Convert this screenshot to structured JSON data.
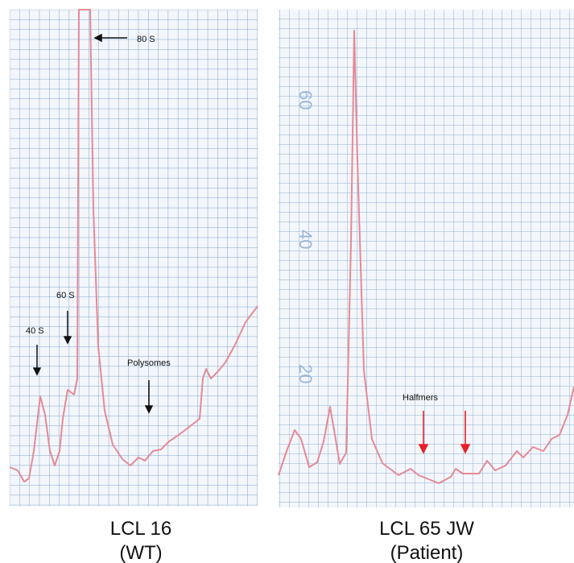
{
  "panels": [
    {
      "caption": "LCL 16",
      "subcaption": "(WT)",
      "annotations": [
        "80 S",
        "60 S",
        "40 S",
        "Polysomes"
      ]
    },
    {
      "caption": "LCL 65 JW",
      "subcaption": "(Patient)",
      "annotations": [
        "Halfmers"
      ],
      "paper_labels": [
        "60",
        "40",
        "20"
      ]
    }
  ]
}
